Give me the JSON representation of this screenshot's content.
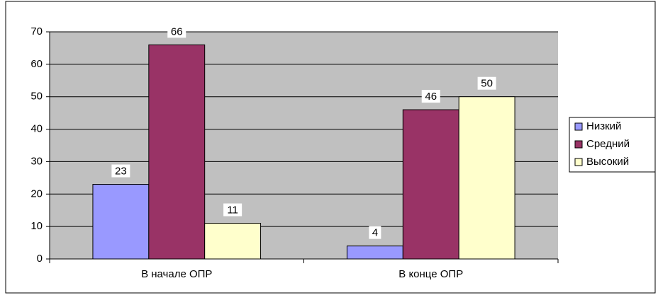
{
  "chart_data": {
    "type": "bar",
    "categories": [
      "В начале ОПР",
      "В конце ОПР"
    ],
    "series": [
      {
        "name": "Низкий",
        "color": "#9999ff",
        "values": [
          23,
          4
        ]
      },
      {
        "name": "Средний",
        "color": "#993366",
        "values": [
          66,
          46
        ]
      },
      {
        "name": "Высокий",
        "color": "#ffffcc",
        "values": [
          11,
          50
        ]
      }
    ],
    "ylim": [
      0,
      70
    ],
    "yticks": [
      0,
      10,
      20,
      30,
      40,
      50,
      60,
      70
    ],
    "grid": true,
    "legend": "right",
    "data_labels": true
  }
}
